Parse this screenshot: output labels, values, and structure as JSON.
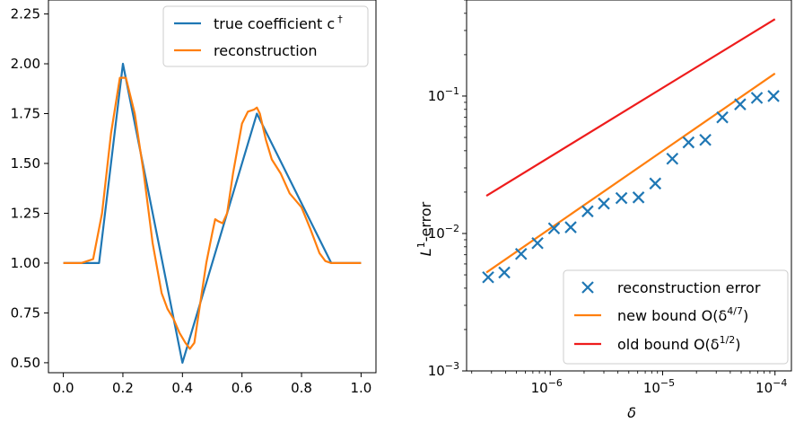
{
  "chart_data": [
    {
      "type": "line",
      "xlim": [
        -0.05,
        1.05
      ],
      "ylim": [
        0.45,
        2.32
      ],
      "x_ticks": [
        0.0,
        0.2,
        0.4,
        0.6,
        0.8,
        1.0
      ],
      "x_tick_labels": [
        "0.0",
        "0.2",
        "0.4",
        "0.6",
        "0.8",
        "1.0"
      ],
      "y_ticks": [
        0.5,
        0.75,
        1.0,
        1.25,
        1.5,
        1.75,
        2.0,
        2.25
      ],
      "y_tick_labels": [
        "0.50",
        "0.75",
        "1.00",
        "1.25",
        "1.50",
        "1.75",
        "2.00",
        "2.25"
      ],
      "grid": false,
      "legend_position": "top-right",
      "series": [
        {
          "name": "true coefficient c",
          "name_sup": "†",
          "color": "#1f77b4",
          "x": [
            0.0,
            0.12,
            0.2,
            0.4,
            0.65,
            0.9,
            1.0
          ],
          "y": [
            1.0,
            1.0,
            2.0,
            0.5,
            1.75,
            1.0,
            1.0
          ]
        },
        {
          "name": "reconstruction",
          "color": "#ff7f0e",
          "x": [
            0.0,
            0.06,
            0.1,
            0.13,
            0.16,
            0.19,
            0.21,
            0.24,
            0.27,
            0.3,
            0.33,
            0.35,
            0.37,
            0.39,
            0.41,
            0.425,
            0.44,
            0.46,
            0.48,
            0.5,
            0.51,
            0.52,
            0.535,
            0.55,
            0.57,
            0.6,
            0.62,
            0.64,
            0.65,
            0.66,
            0.68,
            0.7,
            0.73,
            0.76,
            0.8,
            0.83,
            0.86,
            0.88,
            0.9,
            0.95,
            1.0
          ],
          "y": [
            1.0,
            1.0,
            1.02,
            1.25,
            1.65,
            1.93,
            1.93,
            1.75,
            1.45,
            1.1,
            0.85,
            0.77,
            0.72,
            0.65,
            0.6,
            0.57,
            0.6,
            0.8,
            1.0,
            1.15,
            1.22,
            1.21,
            1.2,
            1.25,
            1.45,
            1.7,
            1.76,
            1.77,
            1.78,
            1.75,
            1.62,
            1.52,
            1.45,
            1.35,
            1.28,
            1.17,
            1.05,
            1.01,
            1.0,
            1.0,
            1.0
          ]
        }
      ]
    },
    {
      "type": "scatter",
      "x_scale": "log",
      "y_scale": "log",
      "xlim": [
        1.8e-07,
        0.00014
      ],
      "ylim": [
        0.001,
        0.5
      ],
      "xlabel": "δ",
      "ylabel": "L",
      "ylabel_sup": "1",
      "ylabel_suffix": "-error",
      "x_ticks": [
        1e-06,
        1e-05,
        0.0001
      ],
      "x_tick_labels": [
        {
          "base": "10",
          "exp": "−6"
        },
        {
          "base": "10",
          "exp": "−5"
        },
        {
          "base": "10",
          "exp": "−4"
        }
      ],
      "y_ticks": [
        0.001,
        0.01,
        0.1
      ],
      "y_tick_labels": [
        {
          "base": "10",
          "exp": "−3"
        },
        {
          "base": "10",
          "exp": "−2"
        },
        {
          "base": "10",
          "exp": "−1"
        }
      ],
      "grid": false,
      "legend_position": "bottom-right",
      "series": [
        {
          "name": "reconstruction error",
          "kind": "markers",
          "marker": "x",
          "color": "#1f77b4",
          "x": [
            2.8e-07,
            3.9e-07,
            5.5e-07,
            7.7e-07,
            1.08e-06,
            1.52e-06,
            2.15e-06,
            3e-06,
            4.3e-06,
            6.1e-06,
            8.6e-06,
            1.22e-05,
            1.7e-05,
            2.4e-05,
            3.4e-05,
            4.9e-05,
            6.9e-05,
            9.7e-05
          ],
          "y": [
            0.0048,
            0.0052,
            0.0071,
            0.0085,
            0.0109,
            0.0111,
            0.0145,
            0.0165,
            0.0181,
            0.0183,
            0.0231,
            0.035,
            0.046,
            0.048,
            0.07,
            0.087,
            0.097,
            0.1
          ]
        },
        {
          "name": "new bound O(δ",
          "name_sup": "4/7",
          "name_suffix": ")",
          "kind": "line",
          "color": "#ff7f0e",
          "x": [
            2.7e-07,
            0.0001
          ],
          "y": [
            0.0052,
            0.146
          ]
        },
        {
          "name": "old bound O(δ",
          "name_sup": "1/2",
          "name_suffix": ")",
          "kind": "line",
          "color": "#ee1c1c",
          "x": [
            2.7e-07,
            0.0001
          ],
          "y": [
            0.0188,
            0.363
          ]
        }
      ]
    }
  ]
}
